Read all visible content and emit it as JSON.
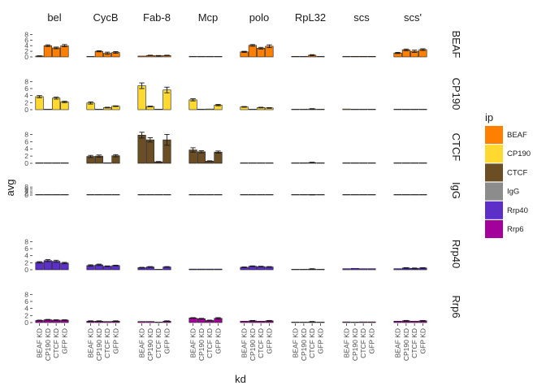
{
  "chart_data": {
    "type": "bar",
    "facet_columns": [
      "bel",
      "CycB",
      "Fab-8",
      "Mcp",
      "polo",
      "RpL32",
      "scs",
      "scs'"
    ],
    "facet_rows": [
      "BEAF",
      "CP190",
      "CTCF",
      "IgG",
      "Rrp40",
      "Rrp6"
    ],
    "categories": [
      "BEAF KD",
      "CP190 KD",
      "CTCF KD",
      "GFP KD"
    ],
    "xlabel": "kd",
    "ylabel": "avg",
    "yticks": [
      0,
      2,
      4,
      6,
      8
    ],
    "ylim": [
      0,
      9
    ],
    "legend": {
      "title": "ip",
      "position": "right",
      "entries": [
        {
          "name": "BEAF",
          "color": "#FF7F00"
        },
        {
          "name": "CP190",
          "color": "#FFD92F"
        },
        {
          "name": "CTCF",
          "color": "#6B4E23"
        },
        {
          "name": "IgG",
          "color": "#8C8C8C"
        },
        {
          "name": "Rrp40",
          "color": "#5B2FC8"
        },
        {
          "name": "Rrp6",
          "color": "#A3009C"
        }
      ]
    },
    "series": [
      {
        "name": "BEAF",
        "values": [
          [
            [
              0.3,
              0.1
            ],
            [
              4.0,
              0.3
            ],
            [
              3.2,
              0.3
            ],
            [
              4.0,
              0.4
            ]
          ],
          [
            [
              0.1,
              0.0
            ],
            [
              2.0,
              0.2
            ],
            [
              1.3,
              0.4
            ],
            [
              1.6,
              0.3
            ]
          ],
          [
            [
              0.3,
              0.0
            ],
            [
              0.5,
              0.1
            ],
            [
              0.4,
              0.1
            ],
            [
              0.5,
              0.1
            ]
          ],
          [
            [
              0.1,
              0.0
            ],
            [
              0.1,
              0.0
            ],
            [
              0.1,
              0.0
            ],
            [
              0.1,
              0.0
            ]
          ],
          [
            [
              1.8,
              0.2
            ],
            [
              4.1,
              0.3
            ],
            [
              3.1,
              0.3
            ],
            [
              3.8,
              0.5
            ]
          ],
          [
            [
              0.2,
              0.0
            ],
            [
              0.1,
              0.0
            ],
            [
              0.6,
              0.2
            ],
            [
              0.1,
              0.0
            ]
          ],
          [
            [
              0.1,
              0.0
            ],
            [
              0.2,
              0.0
            ],
            [
              0.2,
              0.0
            ],
            [
              0.2,
              0.0
            ]
          ],
          [
            [
              1.4,
              0.2
            ],
            [
              2.5,
              0.3
            ],
            [
              2.0,
              0.4
            ],
            [
              2.6,
              0.3
            ]
          ]
        ]
      },
      {
        "name": "CP190",
        "values": [
          [
            [
              3.7,
              0.3
            ],
            [
              0.1,
              0.0
            ],
            [
              3.3,
              0.3
            ],
            [
              2.2,
              0.2
            ]
          ],
          [
            [
              1.9,
              0.3
            ],
            [
              0.1,
              0.0
            ],
            [
              0.6,
              0.1
            ],
            [
              1.0,
              0.1
            ]
          ],
          [
            [
              6.8,
              0.8
            ],
            [
              0.9,
              0.1
            ],
            [
              0.1,
              0.0
            ],
            [
              5.6,
              0.8
            ]
          ],
          [
            [
              2.8,
              0.3
            ],
            [
              0.1,
              0.0
            ],
            [
              0.2,
              0.0
            ],
            [
              1.3,
              0.2
            ]
          ],
          [
            [
              0.8,
              0.1
            ],
            [
              0.1,
              0.0
            ],
            [
              0.6,
              0.1
            ],
            [
              0.5,
              0.1
            ]
          ],
          [
            [
              0.1,
              0.0
            ],
            [
              0.0,
              0.0
            ],
            [
              0.2,
              0.1
            ],
            [
              0.0,
              0.0
            ]
          ],
          [
            [
              0.2,
              0.0
            ],
            [
              0.0,
              0.0
            ],
            [
              0.1,
              0.0
            ],
            [
              0.1,
              0.0
            ]
          ],
          [
            [
              0.1,
              0.0
            ],
            [
              0.0,
              0.0
            ],
            [
              0.1,
              0.0
            ],
            [
              0.1,
              0.0
            ]
          ]
        ]
      },
      {
        "name": "CTCF",
        "values": [
          [
            [
              0.1,
              0.0
            ],
            [
              0.1,
              0.0
            ],
            [
              0.1,
              0.0
            ],
            [
              0.1,
              0.0
            ]
          ],
          [
            [
              1.9,
              0.3
            ],
            [
              2.0,
              0.3
            ],
            [
              0.1,
              0.0
            ],
            [
              2.1,
              0.3
            ]
          ],
          [
            [
              7.8,
              0.8
            ],
            [
              6.5,
              0.6
            ],
            [
              0.4,
              0.1
            ],
            [
              6.5,
              1.5
            ]
          ],
          [
            [
              3.7,
              0.6
            ],
            [
              3.2,
              0.3
            ],
            [
              0.6,
              0.1
            ],
            [
              3.1,
              0.3
            ]
          ],
          [
            [
              0.1,
              0.0
            ],
            [
              0.1,
              0.0
            ],
            [
              0.1,
              0.0
            ],
            [
              0.1,
              0.0
            ]
          ],
          [
            [
              0.1,
              0.0
            ],
            [
              0.0,
              0.0
            ],
            [
              0.2,
              0.1
            ],
            [
              0.0,
              0.0
            ]
          ],
          [
            [
              0.1,
              0.0
            ],
            [
              0.1,
              0.0
            ],
            [
              0.1,
              0.0
            ],
            [
              0.1,
              0.0
            ]
          ],
          [
            [
              0.1,
              0.0
            ],
            [
              0.1,
              0.0
            ],
            [
              0.1,
              0.0
            ],
            [
              0.1,
              0.0
            ]
          ]
        ]
      },
      {
        "name": "IgG",
        "values": [
          [
            [
              0.1,
              0.0
            ],
            [
              0.1,
              0.0
            ],
            [
              0.1,
              0.0
            ],
            [
              0.1,
              0.0
            ]
          ],
          [
            [
              0.1,
              0.0
            ],
            [
              0.1,
              0.0
            ],
            [
              0.1,
              0.0
            ],
            [
              0.1,
              0.0
            ]
          ],
          [
            [
              0.2,
              0.0
            ],
            [
              0.2,
              0.0
            ],
            [
              0.1,
              0.0
            ],
            [
              0.2,
              0.0
            ]
          ],
          [
            [
              0.1,
              0.0
            ],
            [
              0.1,
              0.0
            ],
            [
              0.1,
              0.0
            ],
            [
              0.1,
              0.0
            ]
          ],
          [
            [
              0.1,
              0.0
            ],
            [
              0.1,
              0.0
            ],
            [
              0.1,
              0.0
            ],
            [
              0.1,
              0.0
            ]
          ],
          [
            [
              0.1,
              0.0
            ],
            [
              0.0,
              0.0
            ],
            [
              0.2,
              0.1
            ],
            [
              0.0,
              0.0
            ]
          ],
          [
            [
              0.1,
              0.0
            ],
            [
              0.1,
              0.0
            ],
            [
              0.1,
              0.0
            ],
            [
              0.1,
              0.0
            ]
          ],
          [
            [
              0.1,
              0.0
            ],
            [
              0.1,
              0.0
            ],
            [
              0.1,
              0.0
            ],
            [
              0.1,
              0.0
            ]
          ]
        ]
      },
      {
        "name": "Rrp40",
        "values": [
          [
            [
              2.1,
              0.2
            ],
            [
              2.6,
              0.3
            ],
            [
              2.4,
              0.3
            ],
            [
              1.9,
              0.2
            ]
          ],
          [
            [
              1.2,
              0.2
            ],
            [
              1.4,
              0.2
            ],
            [
              1.0,
              0.1
            ],
            [
              1.2,
              0.1
            ]
          ],
          [
            [
              0.6,
              0.1
            ],
            [
              0.8,
              0.1
            ],
            [
              0.1,
              0.0
            ],
            [
              0.8,
              0.1
            ]
          ],
          [
            [
              0.2,
              0.0
            ],
            [
              0.2,
              0.0
            ],
            [
              0.2,
              0.0
            ],
            [
              0.2,
              0.0
            ]
          ],
          [
            [
              0.7,
              0.1
            ],
            [
              1.0,
              0.1
            ],
            [
              0.9,
              0.1
            ],
            [
              0.8,
              0.1
            ]
          ],
          [
            [
              0.1,
              0.0
            ],
            [
              0.0,
              0.0
            ],
            [
              0.2,
              0.1
            ],
            [
              0.0,
              0.0
            ]
          ],
          [
            [
              0.3,
              0.0
            ],
            [
              0.4,
              0.0
            ],
            [
              0.3,
              0.0
            ],
            [
              0.3,
              0.0
            ]
          ],
          [
            [
              0.3,
              0.0
            ],
            [
              0.5,
              0.1
            ],
            [
              0.4,
              0.1
            ],
            [
              0.5,
              0.1
            ]
          ]
        ]
      },
      {
        "name": "Rrp6",
        "values": [
          [
            [
              0.6,
              0.1
            ],
            [
              0.8,
              0.1
            ],
            [
              0.7,
              0.1
            ],
            [
              0.7,
              0.1
            ]
          ],
          [
            [
              0.4,
              0.1
            ],
            [
              0.4,
              0.1
            ],
            [
              0.3,
              0.0
            ],
            [
              0.4,
              0.1
            ]
          ],
          [
            [
              0.3,
              0.0
            ],
            [
              0.3,
              0.0
            ],
            [
              0.1,
              0.0
            ],
            [
              0.4,
              0.1
            ]
          ],
          [
            [
              1.3,
              0.1
            ],
            [
              1.1,
              0.1
            ],
            [
              0.6,
              0.1
            ],
            [
              1.2,
              0.2
            ]
          ],
          [
            [
              0.4,
              0.0
            ],
            [
              0.5,
              0.1
            ],
            [
              0.4,
              0.0
            ],
            [
              0.5,
              0.1
            ]
          ],
          [
            [
              0.1,
              0.0
            ],
            [
              0.0,
              0.0
            ],
            [
              0.2,
              0.1
            ],
            [
              0.0,
              0.0
            ]
          ],
          [
            [
              0.2,
              0.0
            ],
            [
              0.1,
              0.0
            ],
            [
              0.2,
              0.0
            ],
            [
              0.2,
              0.0
            ]
          ],
          [
            [
              0.4,
              0.0
            ],
            [
              0.5,
              0.1
            ],
            [
              0.4,
              0.0
            ],
            [
              0.5,
              0.1
            ]
          ]
        ]
      }
    ]
  }
}
